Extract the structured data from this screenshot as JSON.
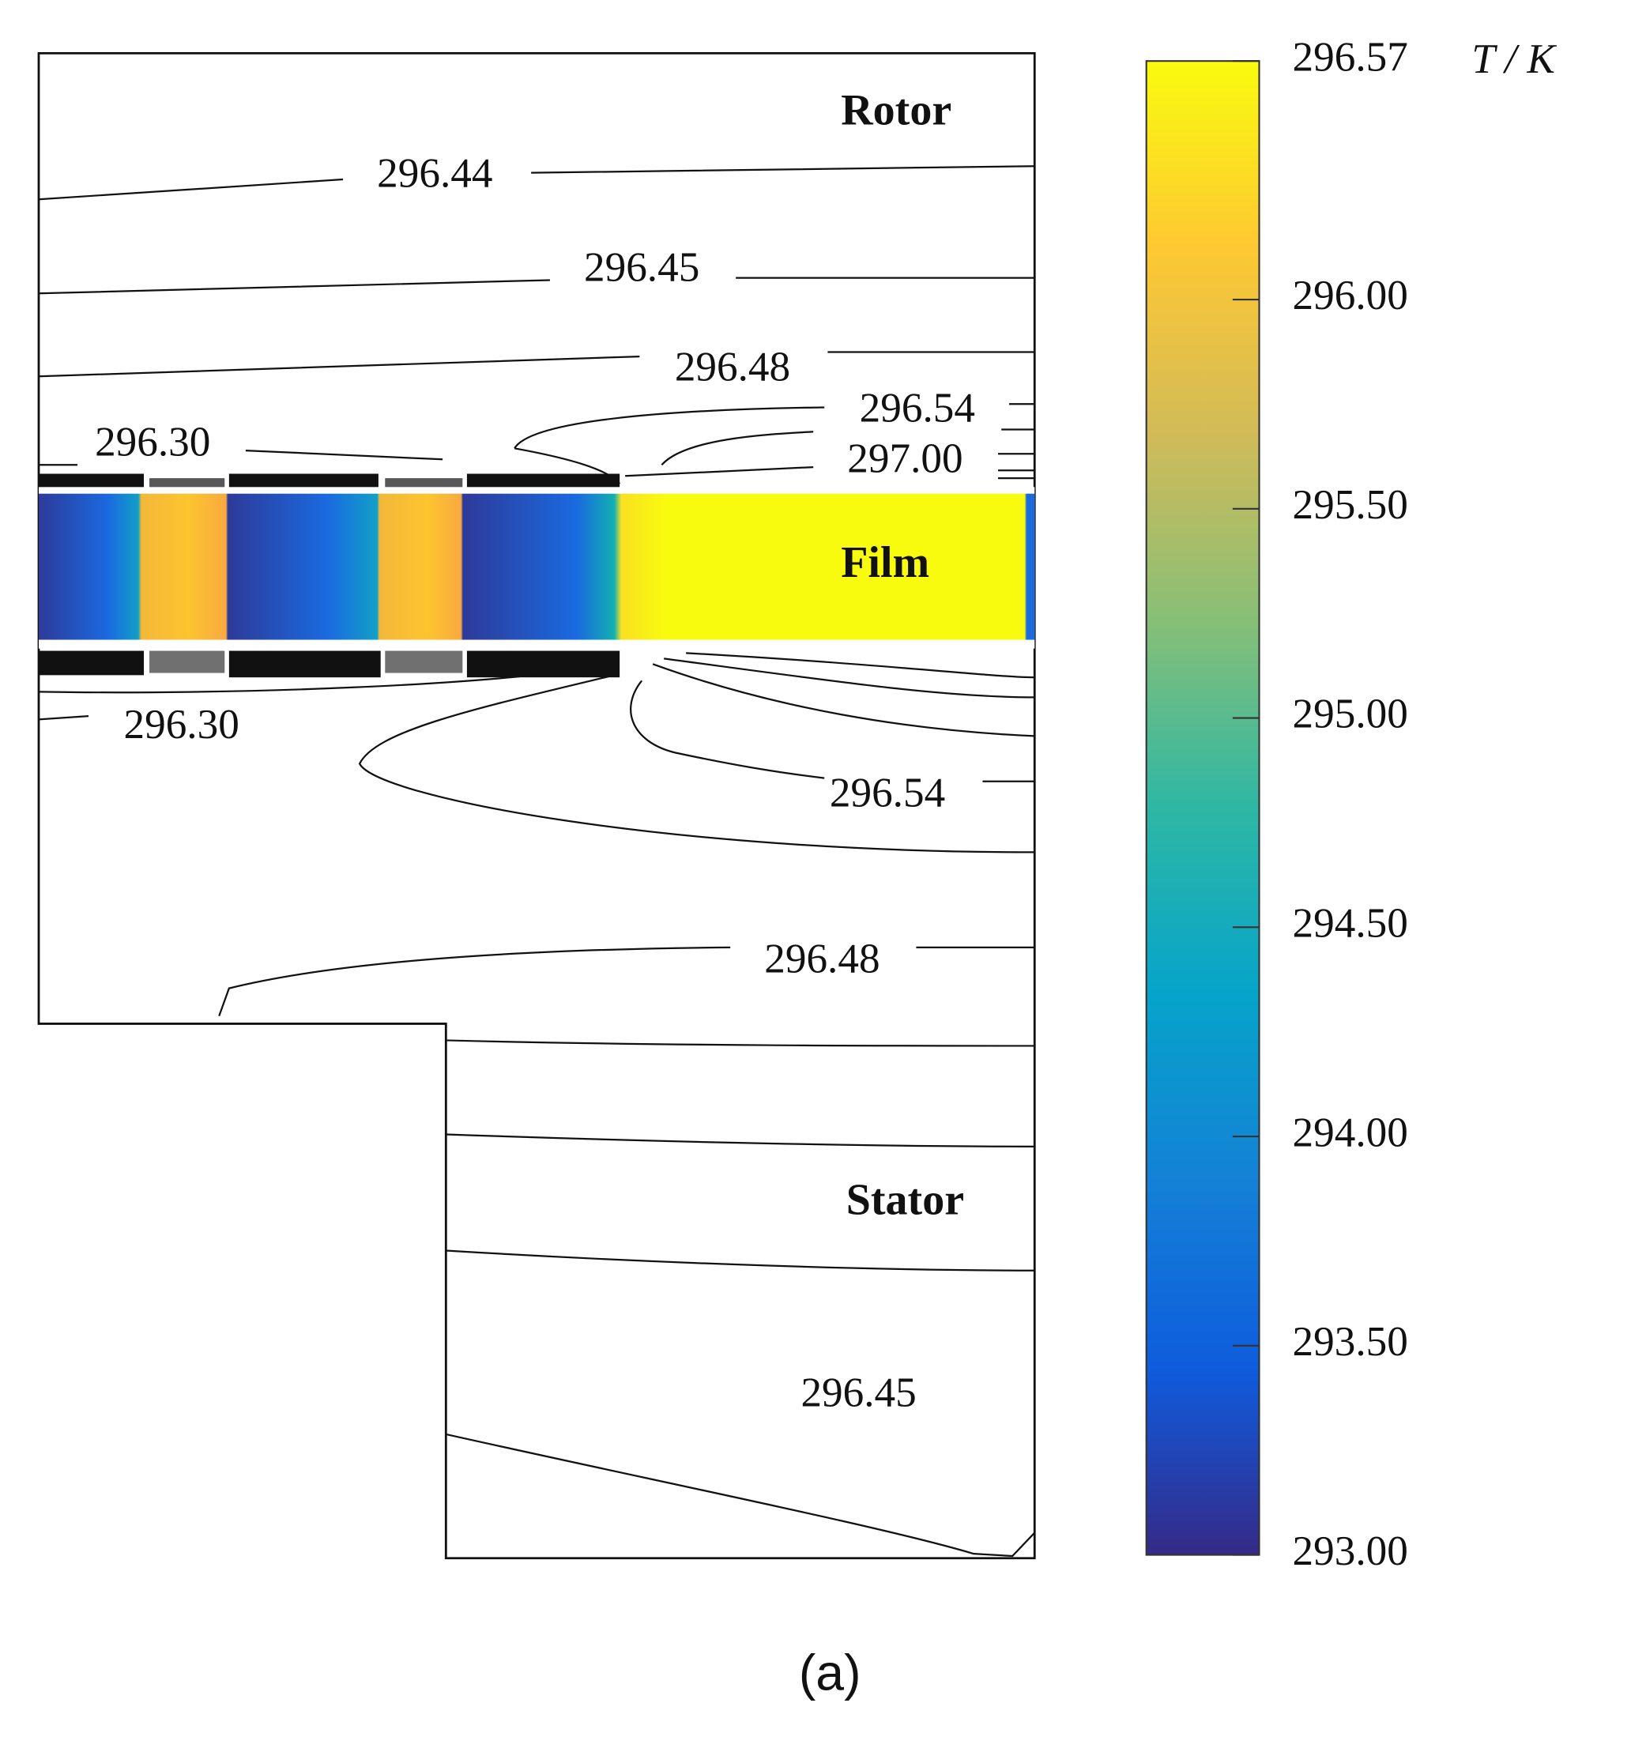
{
  "chart_data": {
    "type": "contour",
    "region_labels": [
      "Rotor",
      "Film",
      "Stator"
    ],
    "colorbar_label": "T / K",
    "caption": "(a)",
    "ylim": [
      293,
      296.57
    ],
    "yticks": [
      {
        "value": 293,
        "label": "293.00"
      },
      {
        "value": 293.5,
        "label": "293.50"
      },
      {
        "value": 294,
        "label": "294.00"
      },
      {
        "value": 294.5,
        "label": "294.50"
      },
      {
        "value": 295,
        "label": "295.00"
      },
      {
        "value": 295.5,
        "label": "295.50"
      },
      {
        "value": 296,
        "label": "296.00"
      },
      296.57
    ],
    "colormap": [
      "#352a87",
      "#0f5cdd",
      "#1481d6",
      "#06a4ca",
      "#2eb7a4",
      "#87bf77",
      "#d1bb59",
      "#fec832",
      "#f9fb0e"
    ],
    "contours": {
      "values": [
        296.44,
        296.45,
        296.48,
        296.54,
        297,
        296.3,
        296.3,
        296.54,
        296.48,
        296.45
      ],
      "value_labels": [
        "296.44",
        "296.45",
        "296.48",
        "296.54",
        "297.00",
        "296.30",
        "296.30",
        "296.54",
        "296.48",
        "296.45"
      ]
    }
  }
}
